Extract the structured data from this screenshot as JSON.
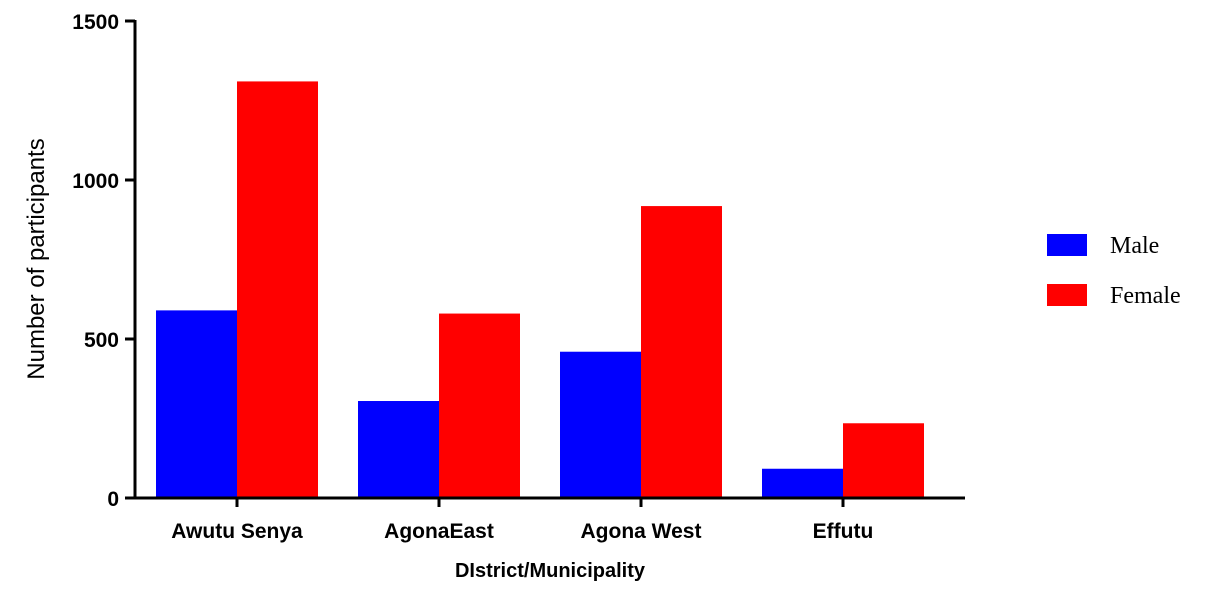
{
  "chart_data": {
    "type": "bar",
    "categories": [
      "Awutu Senya",
      "AgonaEast",
      "Agona West",
      "Effutu"
    ],
    "series": [
      {
        "name": "Male",
        "color": "#0000ff",
        "values": [
          590,
          305,
          460,
          92
        ]
      },
      {
        "name": "Female",
        "color": "#ff0000",
        "values": [
          1310,
          580,
          918,
          235
        ]
      }
    ],
    "xlabel": "DIstrict/Municipality",
    "ylabel": "Number of participants",
    "ylim": [
      0,
      1500
    ],
    "yticks": [
      0,
      500,
      1000,
      1500
    ],
    "grid": false,
    "legend_position": "right"
  }
}
